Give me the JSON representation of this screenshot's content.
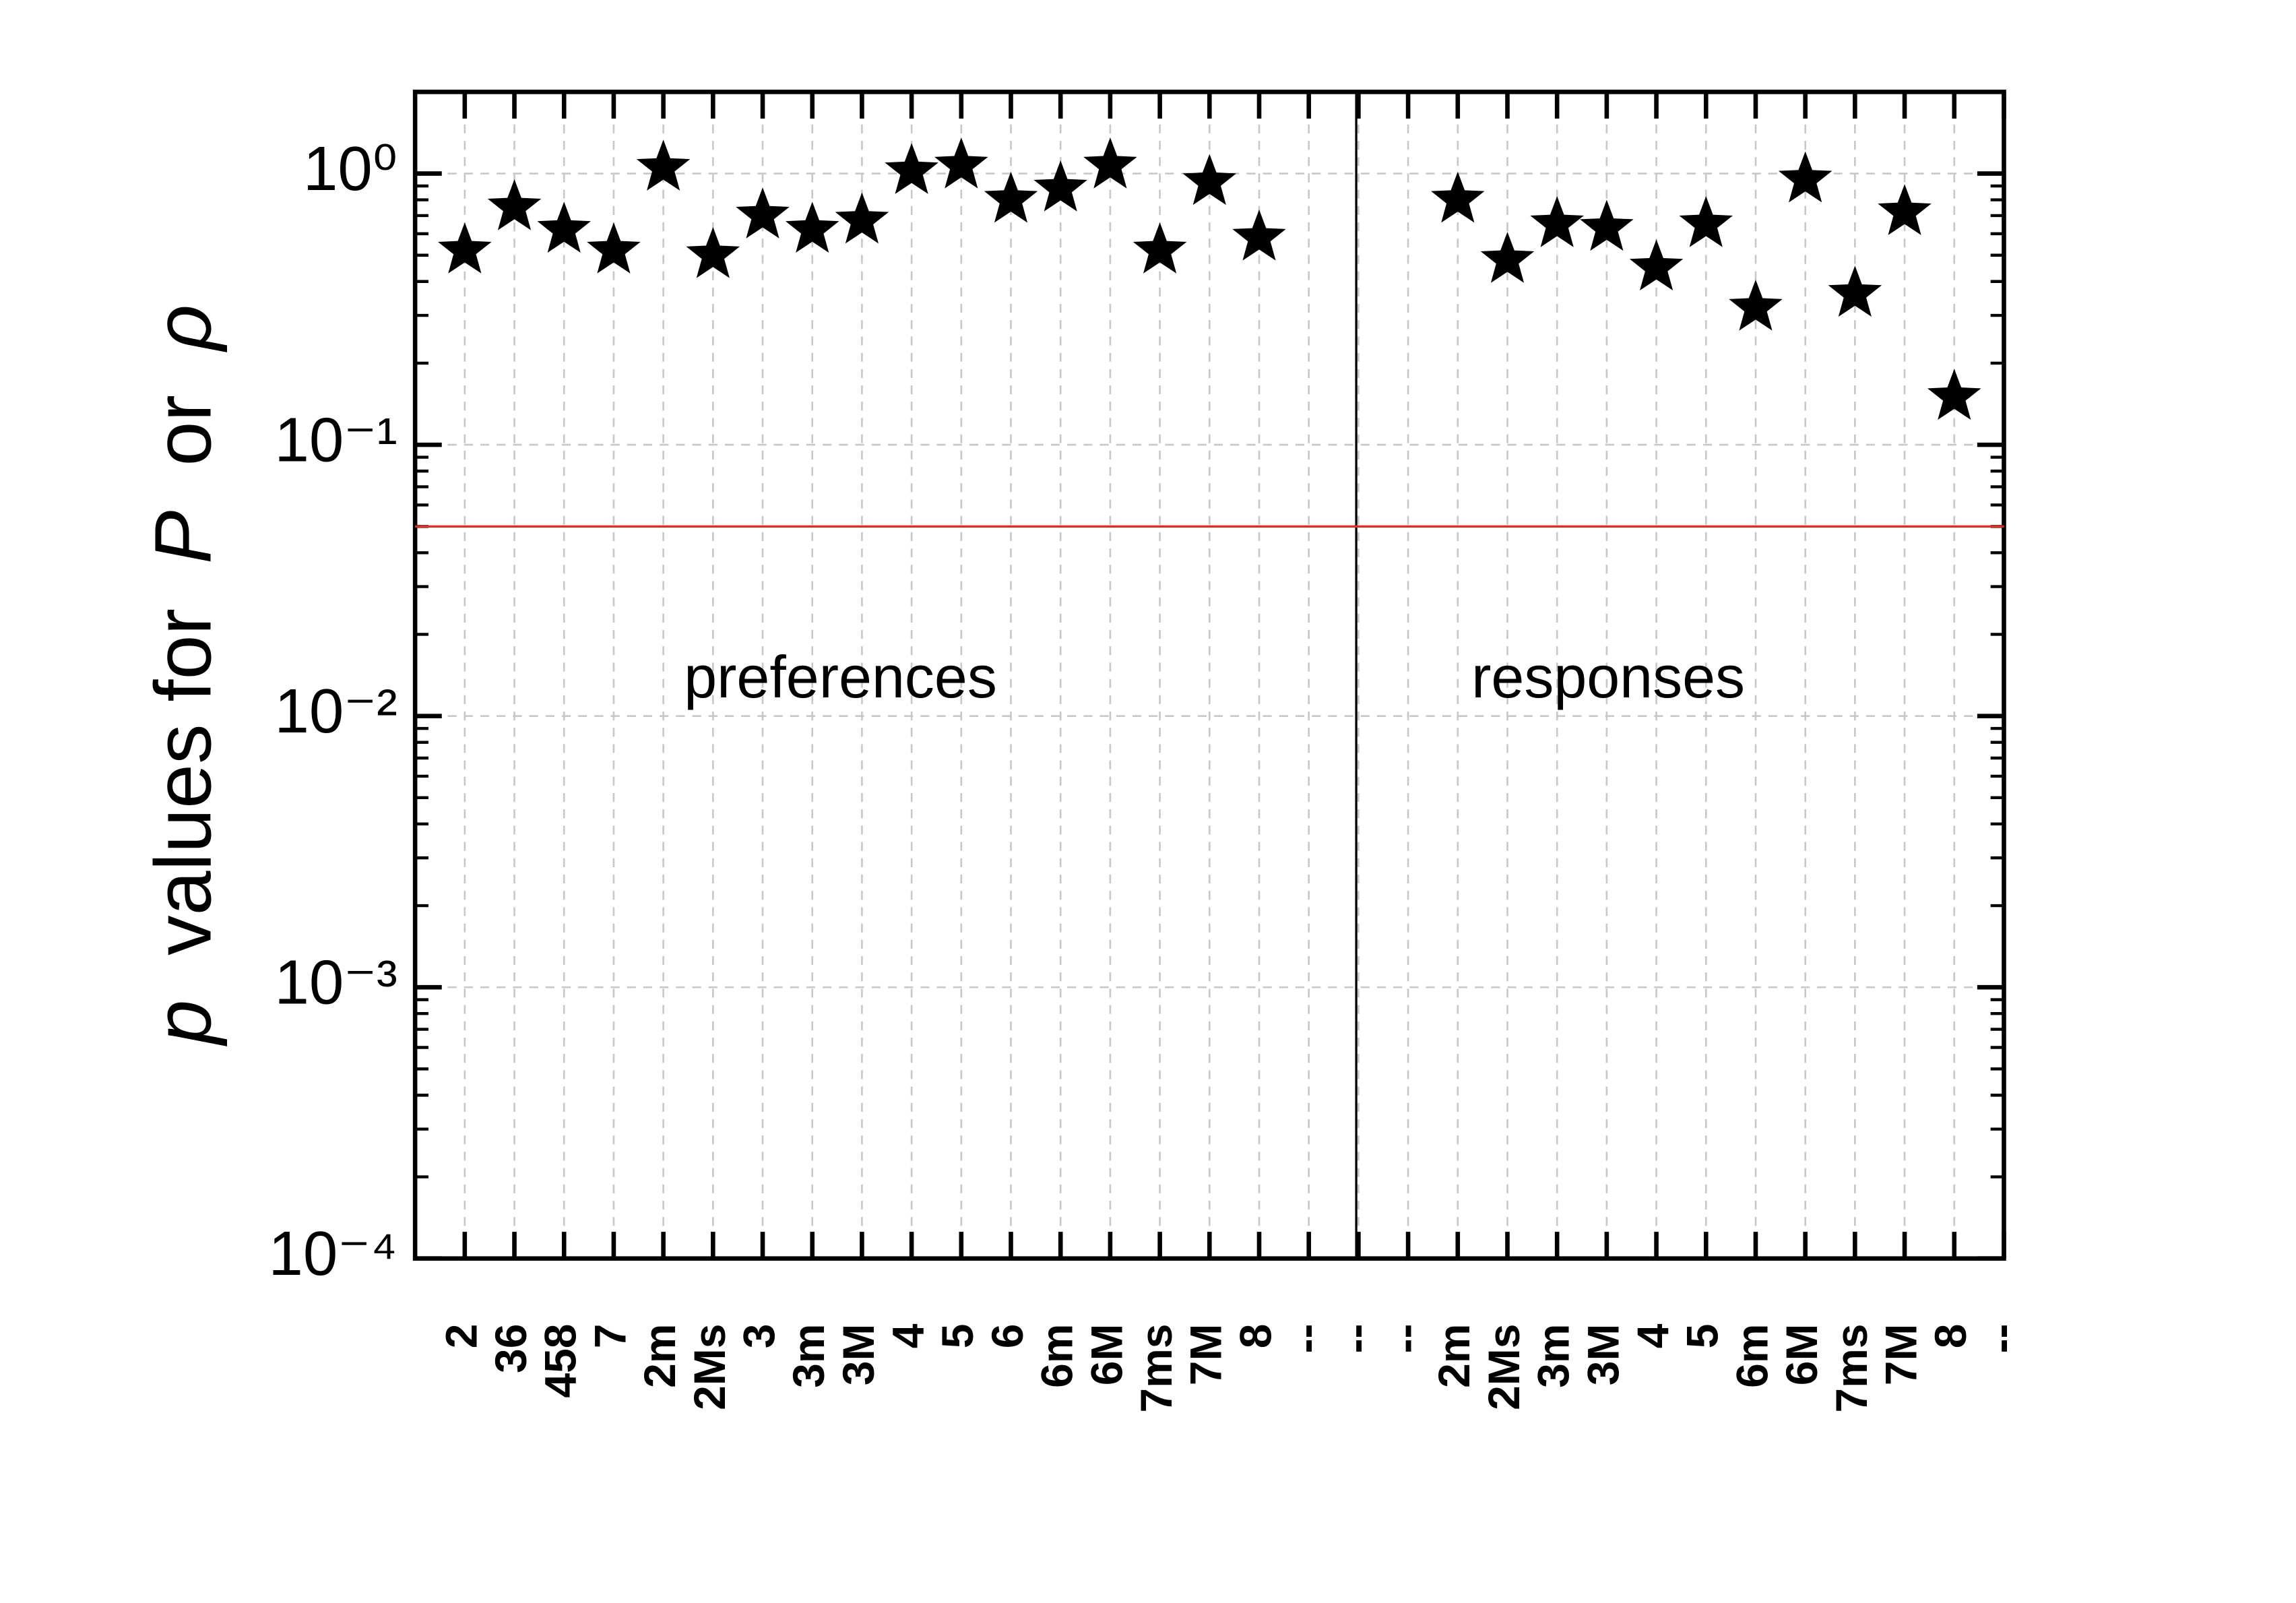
{
  "chart_data": {
    "type": "scatter",
    "y_label": [
      {
        "text": "p",
        "italic": true
      },
      {
        "text": "values for",
        "italic": false
      },
      {
        "text": "P",
        "italic": true
      },
      {
        "text": "or",
        "italic": false
      },
      {
        "text": "ρ",
        "italic": true
      }
    ],
    "categories": [
      "2",
      "36",
      "458",
      "7",
      "2m",
      "2Ms",
      "3",
      "3m",
      "3M",
      "4",
      "5",
      "6",
      "6m",
      "6M",
      "7ms",
      "7M",
      "8",
      "--",
      "--",
      "--",
      "2m",
      "2Ms",
      "3m",
      "3M",
      "4",
      "5",
      "6m",
      "6M",
      "7ms",
      "7M",
      "8",
      "--"
    ],
    "series": [
      {
        "color": "#000000",
        "marker": "star",
        "values": [
          0.52,
          0.75,
          0.62,
          0.52,
          1.05,
          0.5,
          0.7,
          0.62,
          0.67,
          1.02,
          1.07,
          0.8,
          0.88,
          1.07,
          0.52,
          0.93,
          0.58,
          null,
          null,
          null,
          0.8,
          0.48,
          0.65,
          0.63,
          0.45,
          0.65,
          0.32,
          0.95,
          0.36,
          0.72,
          0.15,
          null
        ]
      }
    ],
    "annotations": [
      "preferences",
      "responses"
    ],
    "reference_line": {
      "value": 0.05,
      "color": "#e0301e"
    },
    "log_y": true,
    "ylim": [
      0.0001,
      2
    ],
    "yticks": [
      {
        "value": 0.0001,
        "label": "10⁻⁴"
      },
      {
        "value": 0.001,
        "label": "10⁻³"
      },
      {
        "value": 0.01,
        "label": "10⁻²"
      },
      {
        "value": 0.1,
        "label": "10⁻¹"
      },
      {
        "value": 1,
        "label": "10⁰"
      }
    ],
    "grid": true
  }
}
